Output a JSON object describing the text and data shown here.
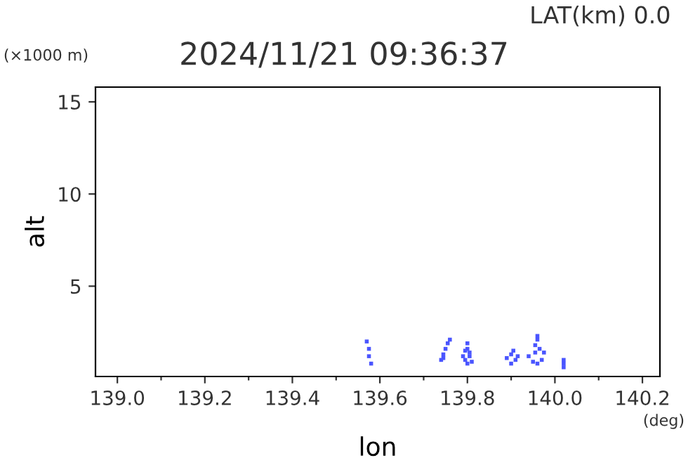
{
  "chart_data": {
    "type": "scatter",
    "title": "2024/11/21 09:36:37",
    "xlabel": "lon",
    "ylabel": "alt",
    "annotations": [
      "LAT(km) 0.0",
      "(×1000 m)",
      "(deg)"
    ],
    "x": [
      139.57,
      139.575,
      139.575,
      139.58,
      139.74,
      139.745,
      139.75,
      139.755,
      139.76,
      139.745,
      139.79,
      139.795,
      139.8,
      139.805,
      139.8,
      139.8,
      139.805,
      139.81,
      139.795,
      139.89,
      139.9,
      139.91,
      139.905,
      139.915,
      139.9,
      139.94,
      139.95,
      139.96,
      139.97,
      139.975,
      139.955,
      139.96,
      139.965,
      139.955,
      139.96,
      140.02,
      140.02,
      140.02
    ],
    "values": [
      2.0,
      1.6,
      1.2,
      0.8,
      1.0,
      1.3,
      1.6,
      1.9,
      2.1,
      1.1,
      1.2,
      1.0,
      0.8,
      1.2,
      1.6,
      1.9,
      1.4,
      0.9,
      1.5,
      1.1,
      0.8,
      1.0,
      1.5,
      1.2,
      1.3,
      1.2,
      0.9,
      0.8,
      1.0,
      1.4,
      1.8,
      2.1,
      1.6,
      1.4,
      2.3,
      0.6,
      0.8,
      1.0
    ],
    "color": "#4a55ff",
    "marker": "square",
    "xlim": [
      138.95,
      140.24
    ],
    "ylim": [
      0.1,
      15.8
    ],
    "xticks": [
      {
        "value": 139.0,
        "label": "139.0"
      },
      {
        "value": 139.1,
        "label": null
      },
      {
        "value": 139.2,
        "label": "139.2"
      },
      {
        "value": 139.3,
        "label": null
      },
      {
        "value": 139.4,
        "label": "139.4"
      },
      {
        "value": 139.5,
        "label": null
      },
      {
        "value": 139.6,
        "label": "139.6"
      },
      {
        "value": 139.7,
        "label": null
      },
      {
        "value": 139.8,
        "label": "139.8"
      },
      {
        "value": 139.9,
        "label": null
      },
      {
        "value": 140.0,
        "label": "140.0"
      },
      {
        "value": 140.1,
        "label": null
      },
      {
        "value": 140.2,
        "label": "140.2"
      }
    ],
    "yticks": [
      5,
      10,
      15
    ],
    "grid": false
  }
}
